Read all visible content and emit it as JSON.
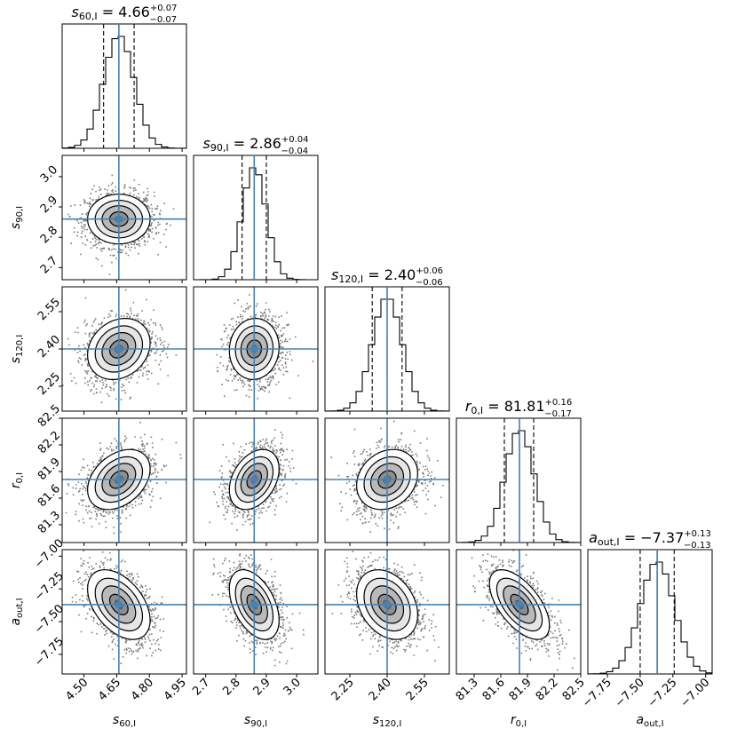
{
  "chart_data": {
    "type": "corner",
    "parameters": [
      {
        "key": "s60",
        "label": "s60,I",
        "sym": "s",
        "sub": "60,I",
        "median": 4.66,
        "plus": 0.07,
        "minus": 0.07,
        "range": [
          4.4,
          4.97
        ],
        "ticks": [
          4.5,
          4.65,
          4.8,
          4.95
        ],
        "tick_labels": [
          "4.50",
          "4.65",
          "4.80",
          "4.95"
        ],
        "truth": 4.66
      },
      {
        "key": "s90",
        "label": "s90,I",
        "sym": "s",
        "sub": "90,I",
        "median": 2.86,
        "plus": 0.04,
        "minus": 0.04,
        "range": [
          2.66,
          3.07
        ],
        "ticks": [
          2.7,
          2.8,
          2.9,
          3.0
        ],
        "tick_labels": [
          "2.7",
          "2.8",
          "2.9",
          "3.0"
        ],
        "truth": 2.86
      },
      {
        "key": "s120",
        "label": "s120,I",
        "sym": "s",
        "sub": "120,I",
        "median": 2.4,
        "plus": 0.06,
        "minus": 0.06,
        "range": [
          2.15,
          2.65
        ],
        "ticks": [
          2.25,
          2.4,
          2.55
        ],
        "tick_labels": [
          "2.25",
          "2.40",
          "2.55"
        ],
        "truth": 2.4
      },
      {
        "key": "r0",
        "label": "r0,I",
        "sym": "r",
        "sub": "0,I",
        "median": 81.81,
        "plus": 0.16,
        "minus": 0.17,
        "range": [
          81.1,
          82.5
        ],
        "ticks": [
          81.3,
          81.6,
          81.9,
          82.2,
          82.5
        ],
        "tick_labels": [
          "81.3",
          "81.6",
          "81.9",
          "82.2",
          "82.5"
        ],
        "truth": 81.81
      },
      {
        "key": "aout",
        "label": "aout,I",
        "sym": "a",
        "sub": "out,I",
        "median": -7.37,
        "plus": 0.13,
        "minus": 0.13,
        "range": [
          -7.9,
          -6.95
        ],
        "ticks": [
          -7.75,
          -7.5,
          -7.25,
          -7.0
        ],
        "tick_labels": [
          "−7.75",
          "−7.50",
          "−7.25",
          "−7.00"
        ],
        "truth": -7.37
      }
    ],
    "titles": [
      {
        "name": "s60,I",
        "value": "4.66",
        "plus": "+0.07",
        "minus": "−0.07"
      },
      {
        "name": "s90,I",
        "value": "2.86",
        "plus": "+0.04",
        "minus": "−0.04"
      },
      {
        "name": "s120,I",
        "value": "2.40",
        "plus": "+0.06",
        "minus": "−0.06"
      },
      {
        "name": "r0,I",
        "value": "81.81",
        "plus": "+0.16",
        "minus": "−0.17"
      },
      {
        "name": "aout,I",
        "value": "−7.37",
        "plus": "+0.13",
        "minus": "−0.13"
      }
    ],
    "correlations": [
      [
        0,
        0,
        0,
        0,
        0
      ],
      [
        0.0,
        0,
        0,
        0,
        0
      ],
      [
        0.2,
        0.05,
        0,
        0,
        0
      ],
      [
        0.35,
        0.35,
        0.2,
        0,
        0
      ],
      [
        -0.45,
        -0.45,
        -0.3,
        -0.6,
        0
      ]
    ],
    "quantiles": [
      0.16,
      0.5,
      0.84
    ],
    "truth_color": "#4682b4",
    "histogram_style": "step",
    "grid": false
  }
}
